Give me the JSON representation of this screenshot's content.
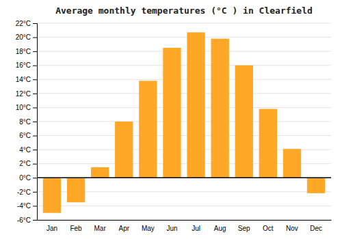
{
  "chart_data": {
    "type": "bar",
    "title": "Average monthly temperatures (°C ) in Clearfield",
    "categories": [
      "Jan",
      "Feb",
      "Mar",
      "Apr",
      "May",
      "Jun",
      "Jul",
      "Aug",
      "Sep",
      "Oct",
      "Nov",
      "Dec"
    ],
    "values": [
      -5.0,
      -3.5,
      1.5,
      8.0,
      13.8,
      18.5,
      20.7,
      19.8,
      16.0,
      9.8,
      4.1,
      -2.2
    ],
    "color": "#FFA726",
    "ylim": [
      -6,
      22
    ],
    "yticks": [
      {
        "value": -6,
        "label": "-6°C"
      },
      {
        "value": -4,
        "label": "-4°C"
      },
      {
        "value": -2,
        "label": "-2°C"
      },
      {
        "value": 0,
        "label": "0°C"
      },
      {
        "value": 2,
        "label": "2°C"
      },
      {
        "value": 4,
        "label": "4°C"
      },
      {
        "value": 6,
        "label": "6°C"
      },
      {
        "value": 8,
        "label": "8°C"
      },
      {
        "value": 10,
        "label": "10°C"
      },
      {
        "value": 12,
        "label": "12°C"
      },
      {
        "value": 14,
        "label": "14°C"
      },
      {
        "value": 16,
        "label": "16°C"
      },
      {
        "value": 18,
        "label": "18°C"
      },
      {
        "value": 20,
        "label": "20°C"
      },
      {
        "value": 22,
        "label": "22°C"
      }
    ],
    "grid": true
  }
}
